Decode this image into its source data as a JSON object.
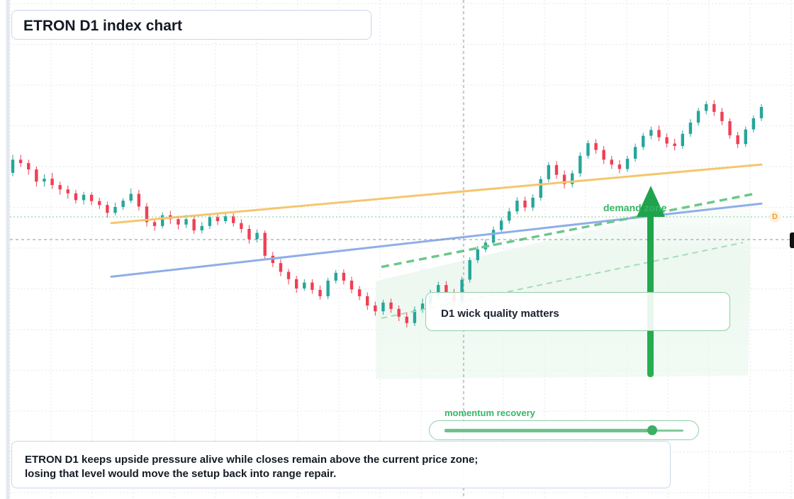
{
  "header": {
    "title": "ETRON D1 index chart"
  },
  "colors": {
    "up": "#26a69a",
    "down": "#ef3f54",
    "orange_line": "#f5c66e",
    "blue_line": "#8faee8",
    "green_accent": "#1fa34c",
    "grid": "#e3e7ee"
  },
  "annotations": {
    "demand_label": "demand zone",
    "note_box": "D1 wick quality matters",
    "momentum_label": "momentum recovery",
    "momentum_level": 0.87,
    "marker_label": "D"
  },
  "footer": {
    "line1": "ETRON D1 keeps upside pressure alive while closes remain above the current price zone;",
    "line2": "losing that level would move the setup back into range repair."
  },
  "chart_data": {
    "type": "candlestick",
    "title": "ETRON D1 index chart",
    "grid": true,
    "note": "price values approximate; no axis scale printed",
    "ylim": [
      0,
      100
    ],
    "candles": [
      {
        "o": 66.3,
        "c": 69.0,
        "h": 70.0,
        "l": 65.6
      },
      {
        "o": 69.0,
        "c": 68.3,
        "h": 70.0,
        "l": 67.5
      },
      {
        "o": 68.3,
        "c": 67.0,
        "h": 69.0,
        "l": 65.9
      },
      {
        "o": 67.0,
        "c": 64.5,
        "h": 67.6,
        "l": 63.5
      },
      {
        "o": 64.5,
        "c": 65.1,
        "h": 66.0,
        "l": 63.5
      },
      {
        "o": 65.1,
        "c": 63.8,
        "h": 66.3,
        "l": 63.0
      },
      {
        "o": 63.8,
        "c": 62.9,
        "h": 64.5,
        "l": 61.8
      },
      {
        "o": 62.9,
        "c": 62.1,
        "h": 63.7,
        "l": 61.0
      },
      {
        "o": 62.1,
        "c": 60.7,
        "h": 62.8,
        "l": 60.0
      },
      {
        "o": 60.7,
        "c": 61.8,
        "h": 62.4,
        "l": 59.8
      },
      {
        "o": 61.8,
        "c": 60.5,
        "h": 62.3,
        "l": 59.7
      },
      {
        "o": 60.5,
        "c": 59.7,
        "h": 61.2,
        "l": 58.9
      },
      {
        "o": 59.7,
        "c": 58.1,
        "h": 60.4,
        "l": 57.1
      },
      {
        "o": 58.1,
        "c": 59.3,
        "h": 60.2,
        "l": 57.6
      },
      {
        "o": 59.3,
        "c": 60.6,
        "h": 61.1,
        "l": 58.7
      },
      {
        "o": 60.6,
        "c": 62.0,
        "h": 63.1,
        "l": 60.1
      },
      {
        "o": 62.0,
        "c": 59.4,
        "h": 62.8,
        "l": 58.6
      },
      {
        "o": 59.4,
        "c": 56.2,
        "h": 60.1,
        "l": 55.3
      },
      {
        "o": 56.2,
        "c": 55.4,
        "h": 57.0,
        "l": 54.4
      },
      {
        "o": 55.4,
        "c": 57.6,
        "h": 58.2,
        "l": 54.9
      },
      {
        "o": 57.6,
        "c": 56.8,
        "h": 58.5,
        "l": 55.8
      },
      {
        "o": 56.8,
        "c": 55.7,
        "h": 57.5,
        "l": 54.7
      },
      {
        "o": 55.7,
        "c": 56.8,
        "h": 57.7,
        "l": 55.0
      },
      {
        "o": 56.8,
        "c": 54.5,
        "h": 57.4,
        "l": 53.8
      },
      {
        "o": 54.5,
        "c": 55.4,
        "h": 56.2,
        "l": 53.9
      },
      {
        "o": 55.4,
        "c": 57.2,
        "h": 57.7,
        "l": 54.8
      },
      {
        "o": 57.2,
        "c": 56.4,
        "h": 58.0,
        "l": 55.6
      },
      {
        "o": 56.4,
        "c": 57.4,
        "h": 58.3,
        "l": 55.9
      },
      {
        "o": 57.4,
        "c": 56.0,
        "h": 58.0,
        "l": 55.3
      },
      {
        "o": 56.0,
        "c": 54.8,
        "h": 56.8,
        "l": 54.0
      },
      {
        "o": 54.8,
        "c": 52.7,
        "h": 55.6,
        "l": 51.8
      },
      {
        "o": 52.7,
        "c": 54.0,
        "h": 54.7,
        "l": 52.0
      },
      {
        "o": 54.0,
        "c": 49.3,
        "h": 54.5,
        "l": 48.5
      },
      {
        "o": 49.3,
        "c": 47.8,
        "h": 50.1,
        "l": 47.0
      },
      {
        "o": 47.8,
        "c": 46.0,
        "h": 48.6,
        "l": 45.1
      },
      {
        "o": 46.0,
        "c": 44.5,
        "h": 46.6,
        "l": 43.4
      },
      {
        "o": 44.5,
        "c": 42.6,
        "h": 45.2,
        "l": 41.7
      },
      {
        "o": 42.6,
        "c": 43.8,
        "h": 44.5,
        "l": 42.1
      },
      {
        "o": 43.8,
        "c": 42.3,
        "h": 44.5,
        "l": 41.5
      },
      {
        "o": 42.3,
        "c": 41.0,
        "h": 43.2,
        "l": 40.3
      },
      {
        "o": 41.0,
        "c": 44.2,
        "h": 44.8,
        "l": 40.4
      },
      {
        "o": 44.2,
        "c": 45.8,
        "h": 46.4,
        "l": 43.6
      },
      {
        "o": 45.8,
        "c": 44.2,
        "h": 46.5,
        "l": 43.4
      },
      {
        "o": 44.2,
        "c": 42.4,
        "h": 45.0,
        "l": 41.6
      },
      {
        "o": 42.4,
        "c": 41.0,
        "h": 43.1,
        "l": 40.2
      },
      {
        "o": 41.0,
        "c": 39.1,
        "h": 41.8,
        "l": 38.2
      },
      {
        "o": 39.1,
        "c": 37.9,
        "h": 39.9,
        "l": 37.0
      },
      {
        "o": 37.9,
        "c": 39.7,
        "h": 40.3,
        "l": 37.2
      },
      {
        "o": 39.7,
        "c": 38.4,
        "h": 40.5,
        "l": 37.6
      },
      {
        "o": 38.4,
        "c": 36.8,
        "h": 39.1,
        "l": 35.9
      },
      {
        "o": 36.8,
        "c": 35.5,
        "h": 37.7,
        "l": 34.6
      },
      {
        "o": 35.5,
        "c": 38.2,
        "h": 38.9,
        "l": 34.9
      },
      {
        "o": 38.2,
        "c": 39.5,
        "h": 40.5,
        "l": 37.6
      },
      {
        "o": 39.5,
        "c": 41.2,
        "h": 42.3,
        "l": 38.9
      },
      {
        "o": 41.2,
        "c": 43.3,
        "h": 44.0,
        "l": 40.7
      },
      {
        "o": 43.3,
        "c": 41.7,
        "h": 44.1,
        "l": 41.0
      },
      {
        "o": 41.7,
        "c": 39.9,
        "h": 42.5,
        "l": 39.1
      },
      {
        "o": 39.9,
        "c": 44.4,
        "h": 45.0,
        "l": 39.3
      },
      {
        "o": 44.4,
        "c": 48.4,
        "h": 49.0,
        "l": 43.8
      },
      {
        "o": 48.4,
        "c": 50.6,
        "h": 51.3,
        "l": 47.8
      },
      {
        "o": 50.6,
        "c": 52.0,
        "h": 52.7,
        "l": 50.0
      },
      {
        "o": 52.0,
        "c": 54.6,
        "h": 55.3,
        "l": 51.3
      },
      {
        "o": 54.6,
        "c": 56.5,
        "h": 57.1,
        "l": 54.0
      },
      {
        "o": 56.5,
        "c": 58.4,
        "h": 59.1,
        "l": 55.9
      },
      {
        "o": 58.4,
        "c": 60.6,
        "h": 61.3,
        "l": 57.8
      },
      {
        "o": 60.6,
        "c": 59.2,
        "h": 61.4,
        "l": 58.4
      },
      {
        "o": 59.2,
        "c": 61.2,
        "h": 61.9,
        "l": 58.5
      },
      {
        "o": 61.2,
        "c": 65.0,
        "h": 65.6,
        "l": 60.6
      },
      {
        "o": 65.0,
        "c": 67.9,
        "h": 68.5,
        "l": 64.4
      },
      {
        "o": 67.9,
        "c": 65.9,
        "h": 68.7,
        "l": 65.1
      },
      {
        "o": 65.9,
        "c": 64.0,
        "h": 66.8,
        "l": 63.1
      },
      {
        "o": 64.0,
        "c": 66.2,
        "h": 66.8,
        "l": 63.3
      },
      {
        "o": 66.2,
        "c": 69.8,
        "h": 70.5,
        "l": 65.5
      },
      {
        "o": 69.8,
        "c": 72.4,
        "h": 73.0,
        "l": 69.2
      },
      {
        "o": 72.4,
        "c": 71.0,
        "h": 73.2,
        "l": 70.2
      },
      {
        "o": 71.0,
        "c": 69.0,
        "h": 71.8,
        "l": 68.1
      },
      {
        "o": 69.0,
        "c": 68.0,
        "h": 69.8,
        "l": 67.1
      },
      {
        "o": 68.0,
        "c": 67.1,
        "h": 68.9,
        "l": 66.2
      },
      {
        "o": 67.1,
        "c": 69.2,
        "h": 69.8,
        "l": 66.5
      },
      {
        "o": 69.2,
        "c": 71.6,
        "h": 72.3,
        "l": 68.6
      },
      {
        "o": 71.6,
        "c": 73.9,
        "h": 74.5,
        "l": 71.0
      },
      {
        "o": 73.9,
        "c": 75.1,
        "h": 75.8,
        "l": 73.2
      },
      {
        "o": 75.1,
        "c": 73.6,
        "h": 76.0,
        "l": 72.8
      },
      {
        "o": 73.6,
        "c": 72.3,
        "h": 74.4,
        "l": 71.5
      },
      {
        "o": 72.3,
        "c": 71.8,
        "h": 73.3,
        "l": 70.9
      },
      {
        "o": 71.8,
        "c": 74.3,
        "h": 75.0,
        "l": 71.2
      },
      {
        "o": 74.3,
        "c": 76.6,
        "h": 77.3,
        "l": 73.7
      },
      {
        "o": 76.6,
        "c": 79.0,
        "h": 79.6,
        "l": 76.0
      },
      {
        "o": 79.0,
        "c": 80.4,
        "h": 81.0,
        "l": 78.3
      },
      {
        "o": 80.4,
        "c": 78.8,
        "h": 81.2,
        "l": 78.0
      },
      {
        "o": 78.8,
        "c": 76.9,
        "h": 79.6,
        "l": 76.1
      },
      {
        "o": 76.9,
        "c": 74.0,
        "h": 77.5,
        "l": 73.3
      },
      {
        "o": 74.0,
        "c": 72.2,
        "h": 74.7,
        "l": 71.4
      },
      {
        "o": 72.2,
        "c": 75.2,
        "h": 75.8,
        "l": 71.6
      },
      {
        "o": 75.2,
        "c": 77.5,
        "h": 78.1,
        "l": 74.6
      },
      {
        "o": 77.5,
        "c": 79.8,
        "h": 80.4,
        "l": 76.9
      }
    ],
    "projection": {
      "y_start": 47.0,
      "y_end": 62.0
    },
    "trendlines": [
      {
        "name": "orange",
        "y_start": 56.0,
        "y_end": 68.0
      },
      {
        "name": "blue",
        "y_start": 45.0,
        "y_end": 60.0
      }
    ]
  }
}
